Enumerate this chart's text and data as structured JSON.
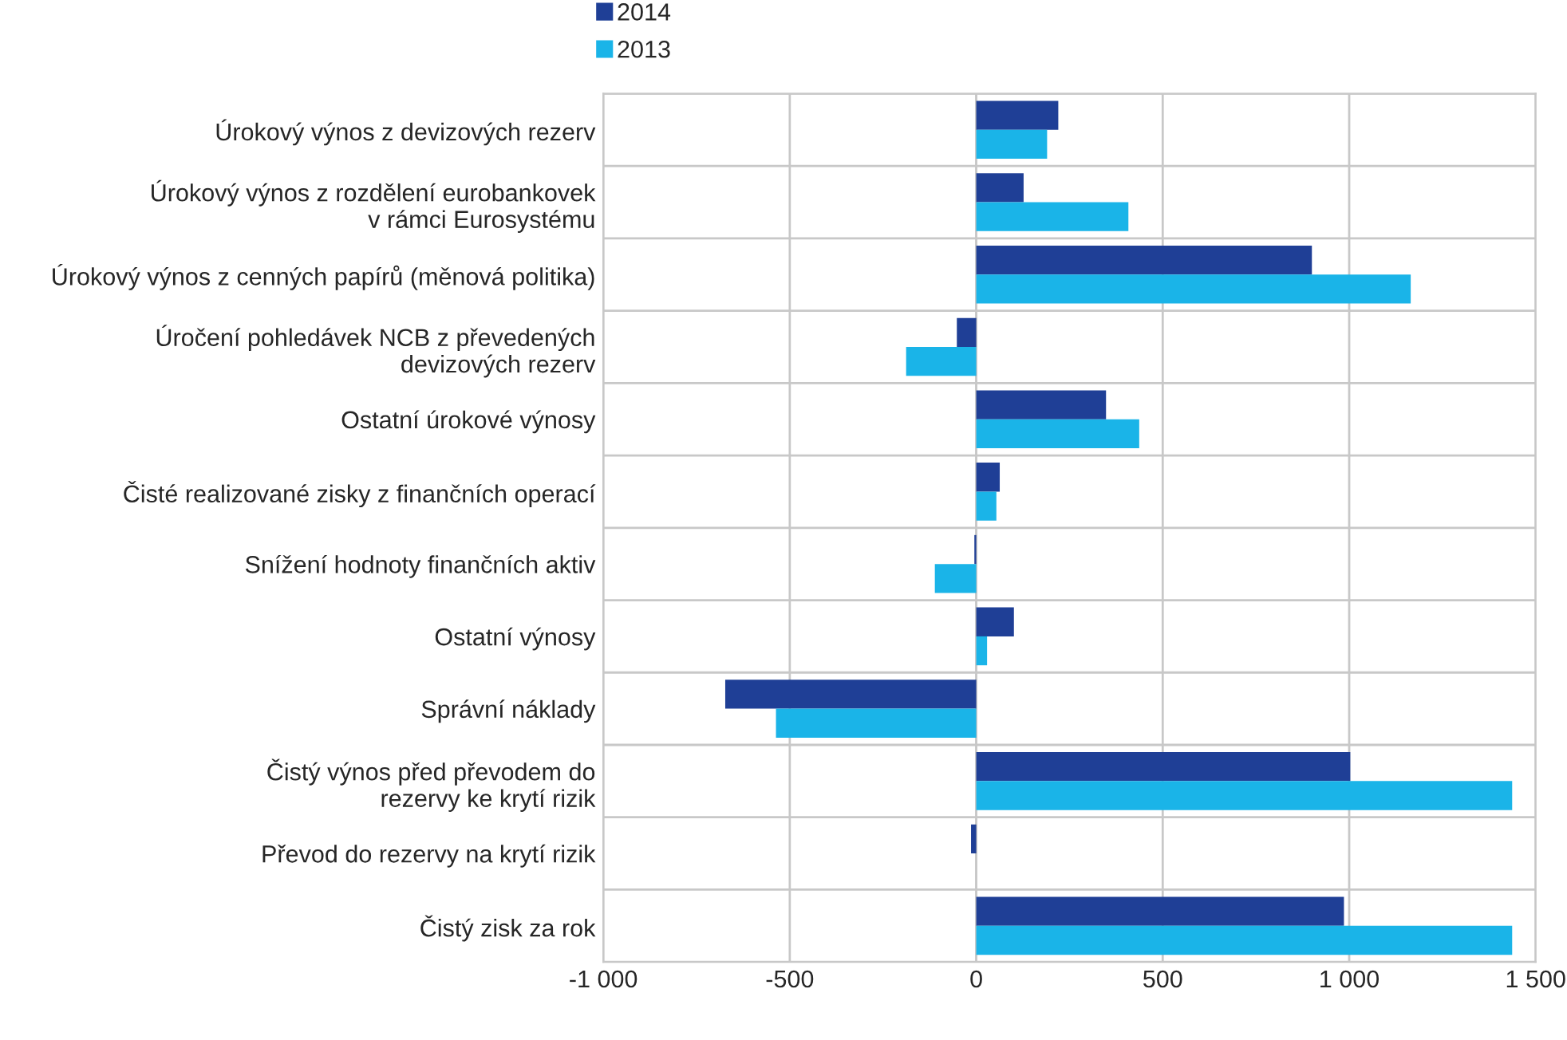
{
  "chart_data": {
    "type": "bar",
    "orientation": "horizontal",
    "categories": [
      "Úrokový výnos z devizových rezerv",
      "Úrokový výnos z rozdělení eurobankovek\nv rámci Eurosystému",
      "Úrokový výnos z cenných papírů (měnová politika)",
      "Úročení pohledávek NCB z převedených\ndevizových rezerv",
      "Ostatní úrokové výnosy",
      "Čisté realizované zisky z finančních operací",
      "Snížení hodnoty finančních aktiv",
      "Ostatní výnosy",
      "Správní náklady",
      "Čistý výnos před převodem do\nrezervy ke krytí rizik",
      "Převod do rezervy na krytí rizik",
      "Čistý zisk za rok"
    ],
    "series": [
      {
        "name": "2014",
        "color": "#1f3f96",
        "values": [
          220,
          127,
          900,
          -52,
          348,
          63,
          -5,
          101,
          -673,
          1003,
          -14,
          986
        ]
      },
      {
        "name": "2013",
        "color": "#1ab4e8",
        "values": [
          190,
          408,
          1165,
          -188,
          437,
          54,
          -111,
          29,
          -537,
          1437,
          null,
          1437
        ]
      }
    ],
    "xlim": [
      -1000,
      1500
    ],
    "xticks": [
      {
        "value": -1000,
        "label": "-1 000"
      },
      -500,
      0,
      500,
      {
        "value": 1000,
        "label": "1 000"
      },
      {
        "value": 1500,
        "label": "1 500"
      }
    ],
    "grid": true,
    "legend": "top"
  }
}
